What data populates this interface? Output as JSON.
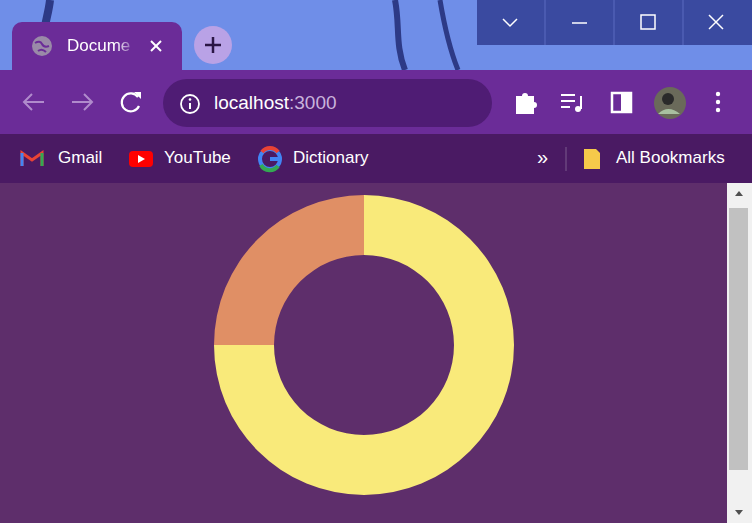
{
  "browser": {
    "tab_title": "Docume",
    "url_host": "localhost",
    "url_port": ":3000",
    "bookmarks": [
      "Gmail",
      "YouTube",
      "Dictionary"
    ],
    "overflow": "»",
    "all_bookmarks": "All Bookmarks"
  },
  "chart_data": {
    "type": "donut",
    "values": [
      75,
      25
    ],
    "colors": [
      "#f9ea7a",
      "#e08f65"
    ]
  }
}
